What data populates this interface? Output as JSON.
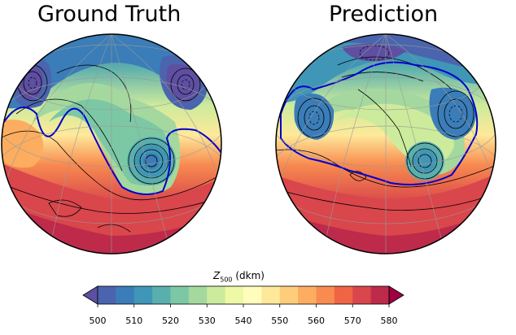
{
  "panels": [
    {
      "title": "Ground Truth"
    },
    {
      "title": "Prediction"
    }
  ],
  "colorbar": {
    "label_var": "Z",
    "label_sub": "500",
    "label_unit": "(dkm)",
    "ticks": [
      "500",
      "510",
      "520",
      "530",
      "540",
      "550",
      "560",
      "570",
      "580"
    ],
    "colors": [
      "#5e4fa2",
      "#4b64ae",
      "#3a7db8",
      "#3f96b7",
      "#5aaeae",
      "#7cc8a5",
      "#a5d89f",
      "#cdeb9c",
      "#eef8a6",
      "#fffdbc",
      "#fee99a",
      "#fdcd7c",
      "#fcad60",
      "#f88b50",
      "#ee6445",
      "#d9464b",
      "#be2a4a",
      "#9e0142"
    ],
    "extend": "both"
  }
}
